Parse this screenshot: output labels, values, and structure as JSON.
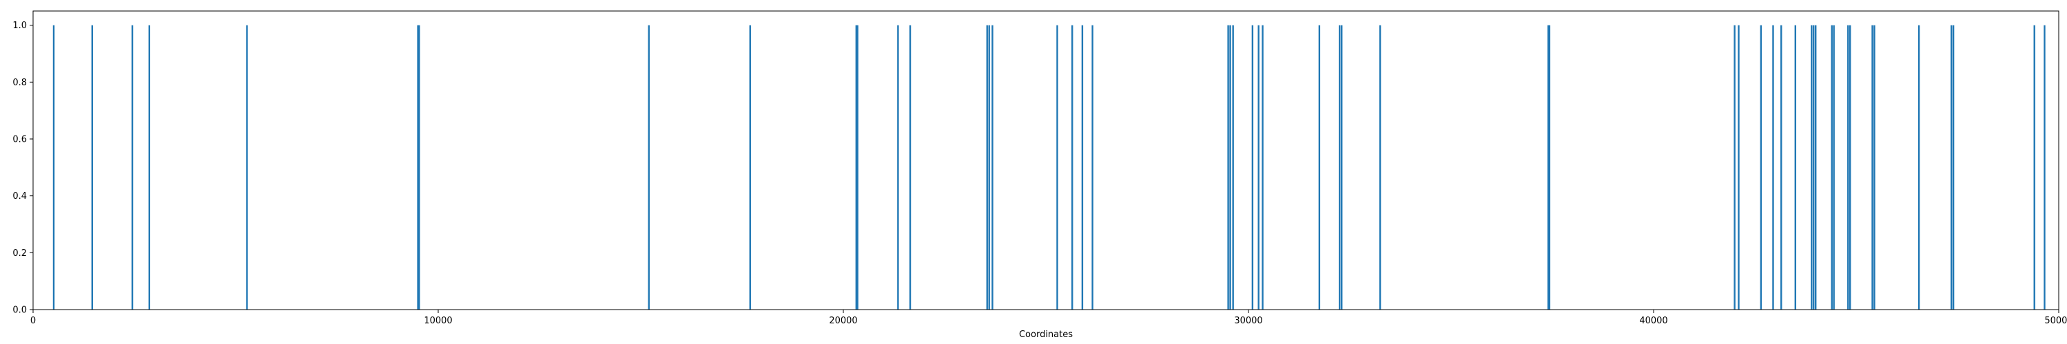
{
  "chart_data": {
    "type": "bar",
    "xlabel": "Coordinates",
    "ylabel": "",
    "title": "",
    "xlim": [
      0,
      50000
    ],
    "ylim": [
      0,
      1.05
    ],
    "grid": false,
    "bar_color": "#1f77b4",
    "bar_value": 1.0,
    "x_ticks": [
      {
        "value": 0,
        "label": "0"
      },
      {
        "value": 10000,
        "label": "10000"
      },
      {
        "value": 20000,
        "label": "20000"
      },
      {
        "value": 30000,
        "label": "30000"
      },
      {
        "value": 40000,
        "label": "40000"
      },
      {
        "value": 50000,
        "label": "50000"
      }
    ],
    "y_ticks": [
      {
        "value": 0.0,
        "label": "0.0"
      },
      {
        "value": 0.2,
        "label": "0.2"
      },
      {
        "value": 0.4,
        "label": "0.4"
      },
      {
        "value": 0.6,
        "label": "0.6"
      },
      {
        "value": 0.8,
        "label": "0.8"
      },
      {
        "value": 1.0,
        "label": "1.0"
      }
    ],
    "positions": [
      510,
      1460,
      2450,
      2870,
      5280,
      9500,
      9530,
      15200,
      17700,
      20320,
      20350,
      21350,
      21650,
      23550,
      23600,
      23680,
      25280,
      25650,
      25900,
      26150,
      29500,
      29550,
      29620,
      30100,
      30250,
      30350,
      31750,
      32250,
      32300,
      33250,
      37400,
      37430,
      42000,
      42100,
      42650,
      42950,
      43150,
      43500,
      43900,
      43950,
      44000,
      44400,
      44450,
      44800,
      44850,
      45400,
      45450,
      46550,
      47350,
      47400,
      49400,
      49650
    ]
  }
}
